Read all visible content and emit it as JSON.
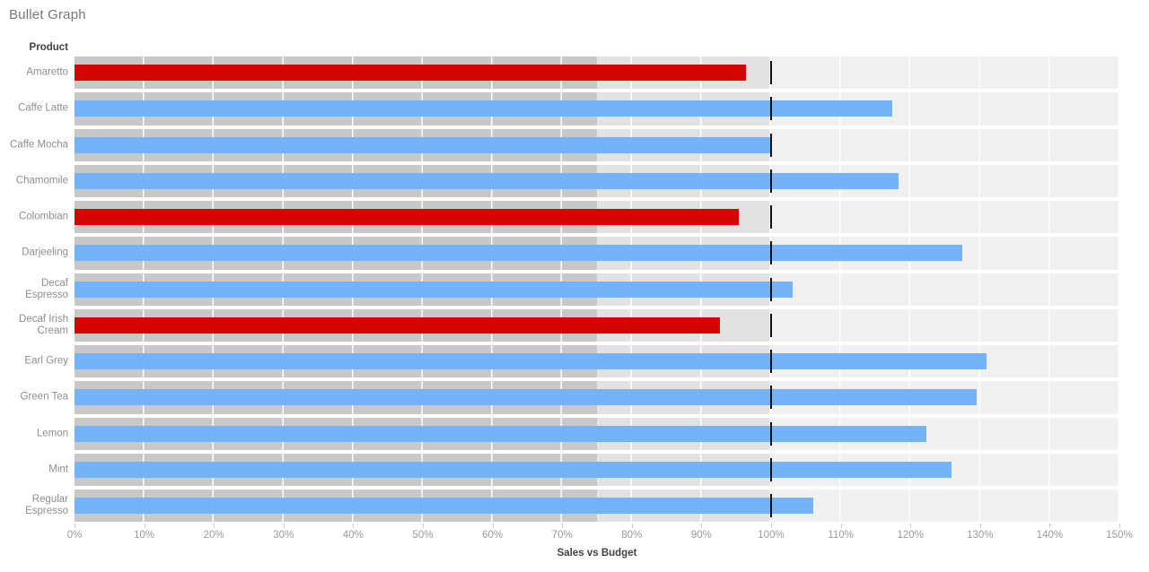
{
  "title": "Bullet Graph",
  "chart_data": {
    "type": "bullet",
    "orientation": "horizontal",
    "row_header": "Product",
    "xlabel": "Sales vs Budget",
    "x_ticks": [
      "0%",
      "10%",
      "20%",
      "30%",
      "40%",
      "50%",
      "60%",
      "70%",
      "80%",
      "90%",
      "100%",
      "110%",
      "120%",
      "130%",
      "140%",
      "150%"
    ],
    "xlim_pct": [
      0,
      150
    ],
    "reference_line_pct": 100,
    "bands_pct": [
      [
        0,
        75
      ],
      [
        75,
        100
      ],
      [
        100,
        150
      ]
    ],
    "grid": "white vertical lines every 10%",
    "rows": [
      {
        "product": "Amaretto",
        "value_pct": 96.4,
        "status": "below"
      },
      {
        "product": "Caffe Latte",
        "value_pct": 117.4,
        "status": "above"
      },
      {
        "product": "Caffe Mocha",
        "value_pct": 100.0,
        "status": "above"
      },
      {
        "product": "Chamomile",
        "value_pct": 118.3,
        "status": "above"
      },
      {
        "product": "Colombian",
        "value_pct": 95.3,
        "status": "below"
      },
      {
        "product": "Darjeeling",
        "value_pct": 127.4,
        "status": "above"
      },
      {
        "product": "Decaf Espresso",
        "value_pct": 103.1,
        "status": "above"
      },
      {
        "product": "Decaf Irish Cream",
        "value_pct": 92.7,
        "status": "below"
      },
      {
        "product": "Earl Grey",
        "value_pct": 130.9,
        "status": "above"
      },
      {
        "product": "Green Tea",
        "value_pct": 129.5,
        "status": "above"
      },
      {
        "product": "Lemon",
        "value_pct": 122.3,
        "status": "above"
      },
      {
        "product": "Mint",
        "value_pct": 125.9,
        "status": "above"
      },
      {
        "product": "Regular Espresso",
        "value_pct": 106.1,
        "status": "above"
      }
    ],
    "colors": {
      "bar_below_budget": "#d40400",
      "bar_above_budget": "#74b3fa",
      "band_0_75": "#c8c8c8",
      "band_75_100": "#e2e2e2",
      "band_100_150": "#f0f0f0",
      "reference_line": "#121212"
    }
  }
}
